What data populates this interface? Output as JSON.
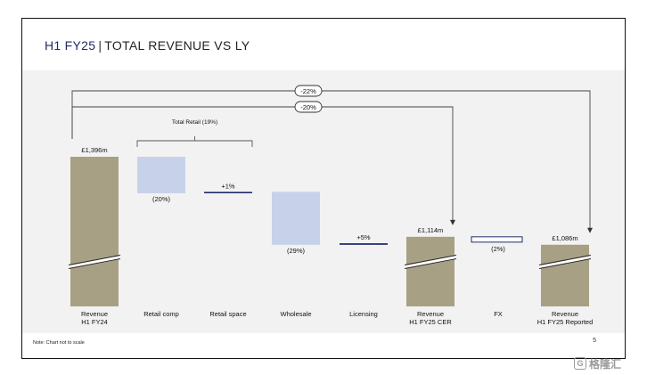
{
  "title": {
    "highlight": "H1 FY25",
    "separator": "|",
    "rest": "TOTAL REVENUE VS LY"
  },
  "note": "Note: Chart not to scale",
  "page_number": "5",
  "watermark": {
    "logo_glyph": "G",
    "text": "格隆汇"
  },
  "colors": {
    "revenue_bar": "#a8a084",
    "negative_bar": "#c7d2ea",
    "positive_line": "#1f2a6b",
    "bracket": "#555555"
  },
  "chart_data": {
    "type": "bar",
    "subtype": "waterfall",
    "categories": [
      "Revenue\nH1 FY24",
      "Retail comp",
      "Retail space",
      "Wholesale",
      "Licensing",
      "Revenue\nH1 FY25 CER",
      "FX",
      "Revenue\nH1 FY25 Reported"
    ],
    "bars": [
      {
        "category": "Revenue\nH1 FY24",
        "kind": "total",
        "label": "£1,396m",
        "value": 1396
      },
      {
        "category": "Retail comp",
        "kind": "decrease",
        "label": "(20%)",
        "change_pct": -20
      },
      {
        "category": "Retail space",
        "kind": "increase",
        "label": "+1%",
        "change_pct": 1
      },
      {
        "category": "Wholesale",
        "kind": "decrease",
        "label": "(29%)",
        "change_pct": -29
      },
      {
        "category": "Licensing",
        "kind": "increase",
        "label": "+5%",
        "change_pct": 5
      },
      {
        "category": "Revenue\nH1 FY25 CER",
        "kind": "total",
        "label": "£1,114m",
        "value": 1114
      },
      {
        "category": "FX",
        "kind": "decrease",
        "label": "(2%)",
        "change_pct": -2
      },
      {
        "category": "Revenue\nH1 FY25 Reported",
        "kind": "total",
        "label": "£1,086m",
        "value": 1086
      }
    ],
    "bracket": {
      "label": "Total Retail (19%)",
      "from": "Retail comp",
      "to": "Retail space"
    },
    "arrows": [
      {
        "label": "-22%",
        "from": "Revenue\nH1 FY24",
        "to": "Revenue\nH1 FY25 Reported"
      },
      {
        "label": "-20%",
        "from": "Revenue\nH1 FY24",
        "to": "Revenue\nH1 FY25 CER"
      }
    ],
    "axis_break": true,
    "grid": false,
    "legend": "none"
  }
}
